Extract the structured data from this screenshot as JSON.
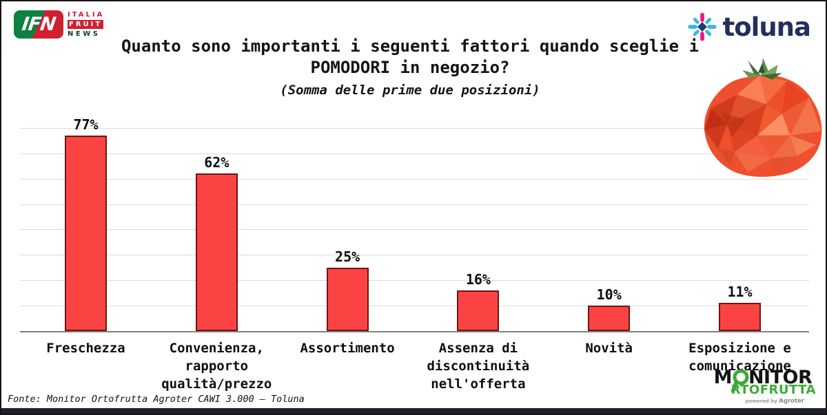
{
  "header": {
    "ifn_logo": {
      "acronym": "IFN",
      "word1": "ITALIA",
      "word2": "FRUIT",
      "word3": "NEWS"
    },
    "toluna": {
      "text": "toluna",
      "navy": "#222f5e",
      "cyan": "#35b6e9",
      "magenta": "#ec1a8d"
    },
    "title_line1": "Quanto sono importanti i seguenti fattori quando sceglie i",
    "title_line2": "POMODORI in negozio?",
    "subtitle": "(Somma delle prime due posizioni)"
  },
  "chart_data": {
    "type": "bar",
    "title": "Quanto sono importanti i seguenti fattori quando sceglie i POMODORI in negozio?",
    "subtitle": "(Somma delle prime due posizioni)",
    "categories": [
      "Freschezza",
      "Convenienza,\nrapporto\nqualità/prezzo",
      "Assortimento",
      "Assenza di\ndiscontinuità\nnell'offerta",
      "Novità",
      "Esposizione e\ncomunicazione"
    ],
    "values": [
      77,
      62,
      25,
      16,
      10,
      11
    ],
    "value_labels": [
      "77%",
      "62%",
      "25%",
      "16%",
      "10%",
      "11%"
    ],
    "xlabel": "",
    "ylabel": "",
    "ylim": [
      0,
      80
    ],
    "grid": "on",
    "grid_interval": 10,
    "legend": "none",
    "bar_color": "#fb4343",
    "bar_border_color": "#6e1414"
  },
  "footer": {
    "source": "Fonte: Monitor Ortofrutta Agroter CAWI 3.000 – Toluna",
    "monitor_logo": {
      "part1": "M",
      "part2": "NITOR",
      "line2": "RTOFRUTTA",
      "powered": "powered by",
      "brand": "Agroter",
      "green": "#3aaa35"
    }
  }
}
